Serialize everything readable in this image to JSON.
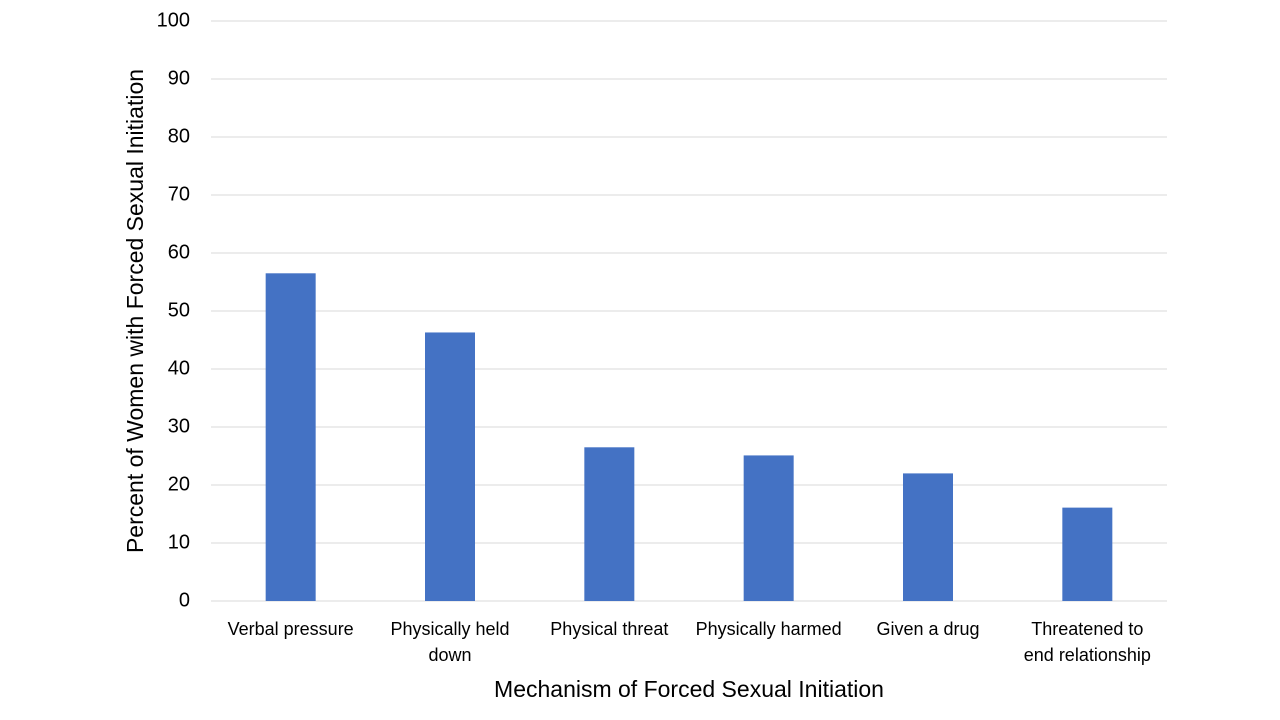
{
  "chart_data": {
    "type": "bar",
    "categories": [
      [
        "Verbal pressure"
      ],
      [
        "Physically held",
        "down"
      ],
      [
        "Physical threat"
      ],
      [
        "Physically harmed"
      ],
      [
        "Given a drug"
      ],
      [
        "Threatened to",
        "end relationship"
      ]
    ],
    "values": [
      56.5,
      46.3,
      26.5,
      25.1,
      22.0,
      16.1
    ],
    "xlabel": "Mechanism of Forced Sexual Initiation",
    "ylabel": "Percent of Women with Forced Sexual Initiation",
    "ylim": [
      0,
      100
    ],
    "ytick_step": 10,
    "yticks": [
      "0",
      "10",
      "20",
      "30",
      "40",
      "50",
      "60",
      "70",
      "80",
      "90",
      "100"
    ],
    "bar_color": "#4472c4",
    "gridlines": true,
    "legend": "none"
  }
}
